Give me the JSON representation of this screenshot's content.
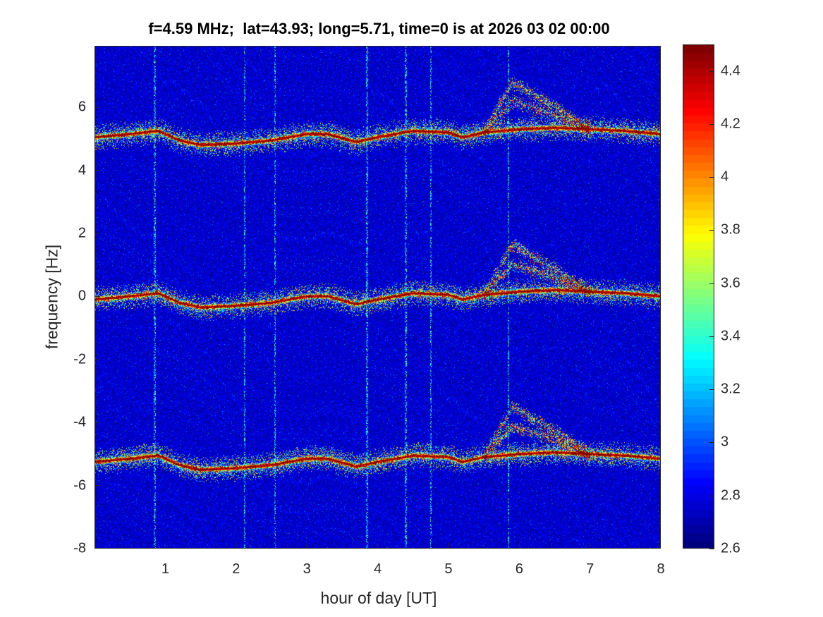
{
  "chart_data": {
    "type": "heatmap",
    "title": "f=4.59 MHz;  lat=43.93; long=5.71, time=0 is at 2026 03 02 00:00",
    "xlabel": "hour of day [UT]",
    "ylabel": "frequency [Hz]",
    "xlim": [
      0,
      8
    ],
    "ylim": [
      -8,
      7.95
    ],
    "xticks": [
      1,
      2,
      3,
      4,
      5,
      6,
      7,
      8
    ],
    "yticks": [
      -8,
      -6,
      -4,
      -2,
      0,
      2,
      4,
      6
    ],
    "colormap": "jet",
    "clim": [
      2.6,
      4.5
    ],
    "colorbar_ticks": [
      2.6,
      2.8,
      3,
      3.2,
      3.4,
      3.6,
      3.8,
      4,
      4.2,
      4.4
    ],
    "colorbar_position": "right",
    "background_level": 2.75,
    "ridge_offsets_hz": [
      -5.15,
      0,
      5.15
    ],
    "central_ridge": {
      "hour": [
        0,
        0.5,
        0.9,
        1.2,
        1.5,
        2.0,
        2.5,
        3.0,
        3.3,
        3.7,
        4.0,
        4.5,
        5.0,
        5.2,
        5.5,
        6.0,
        6.5,
        7.0,
        7.5,
        8.0
      ],
      "freq_hz": [
        -0.1,
        0.0,
        0.1,
        -0.2,
        -0.35,
        -0.3,
        -0.2,
        0.0,
        0.0,
        -0.25,
        -0.1,
        0.1,
        0.05,
        -0.1,
        0.05,
        0.15,
        0.2,
        0.15,
        0.1,
        0.0
      ]
    },
    "spread_arcs": {
      "start_hour": 5.5,
      "peak_hour": 5.9,
      "end_hour": 7.0,
      "peak_offset_hz": [
        1.5,
        0.9
      ]
    },
    "vertical_streak_hours": [
      0.85,
      2.12,
      2.55,
      3.85,
      4.4,
      4.75,
      5.85
    ]
  }
}
